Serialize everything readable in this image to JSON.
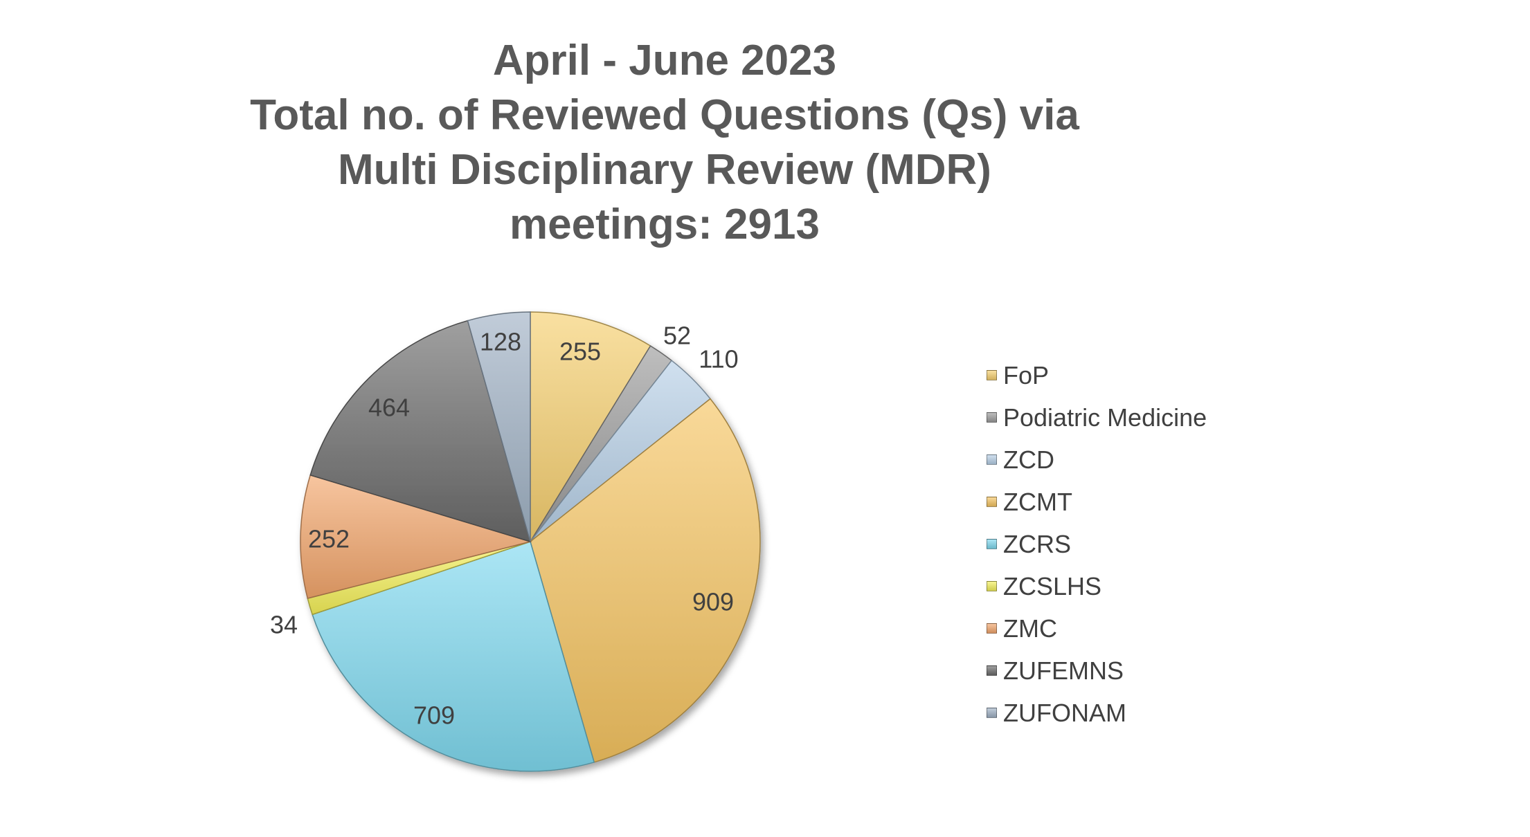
{
  "chart_data": {
    "type": "pie",
    "title_lines": [
      "April - June 2023",
      "Total no. of Reviewed Questions (Qs) via",
      "Multi Disciplinary Review (MDR)",
      "meetings: 2913"
    ],
    "categories": [
      "FoP",
      "Podiatric Medicine",
      "ZCD",
      "ZCMT",
      "ZCRS",
      "ZCSLHS",
      "ZMC",
      "ZUFEMNS",
      "ZUFONAM"
    ],
    "values": [
      255,
      52,
      110,
      909,
      709,
      34,
      252,
      464,
      128
    ],
    "data_labels": [
      "255",
      "52",
      "110",
      "909",
      "709",
      "34",
      "252",
      "464",
      "128"
    ],
    "colors": [
      "#f6cf6f",
      "#9b9b9b",
      "#b6cfe6",
      "#f5c562",
      "#7fd9ef",
      "#f4f05a",
      "#f2a66c",
      "#6b6b6b",
      "#9fb1c4"
    ],
    "legend_placement": "right"
  }
}
